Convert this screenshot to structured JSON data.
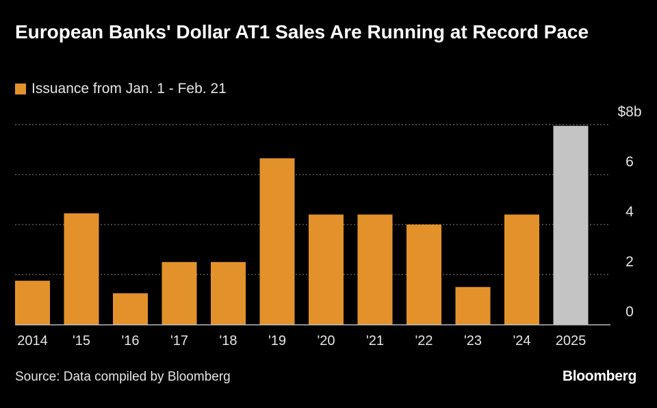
{
  "chart_data": {
    "type": "bar",
    "title": "European Banks' Dollar AT1 Sales Are Running at Record Pace",
    "legend": {
      "label": "Issuance from Jan. 1 - Feb. 21",
      "placement": "top-left"
    },
    "categories": [
      "2014",
      "'15",
      "'16",
      "'17",
      "'18",
      "'19",
      "'20",
      "'21",
      "'22",
      "'23",
      "'24",
      "2025"
    ],
    "values": [
      1.75,
      4.45,
      1.25,
      2.5,
      2.5,
      6.65,
      4.4,
      4.4,
      4.0,
      1.5,
      4.4,
      7.95
    ],
    "highlight_index": 11,
    "ylim": [
      0,
      8
    ],
    "yticks": [
      0,
      2,
      4,
      6,
      8
    ],
    "ytick_labels": [
      "0",
      "2",
      "4",
      "6",
      "$8b"
    ],
    "ytick_position": "right",
    "grid": true,
    "xlabel": "",
    "ylabel": ""
  },
  "colors": {
    "bar": "#e3922b",
    "highlight": "#c4c4c4",
    "grid": "#6e6e6e",
    "axis": "#bdbdbd",
    "text": "#e6e6e6"
  },
  "footer": {
    "source": "Source: Data compiled by Bloomberg",
    "brand": "Bloomberg"
  }
}
